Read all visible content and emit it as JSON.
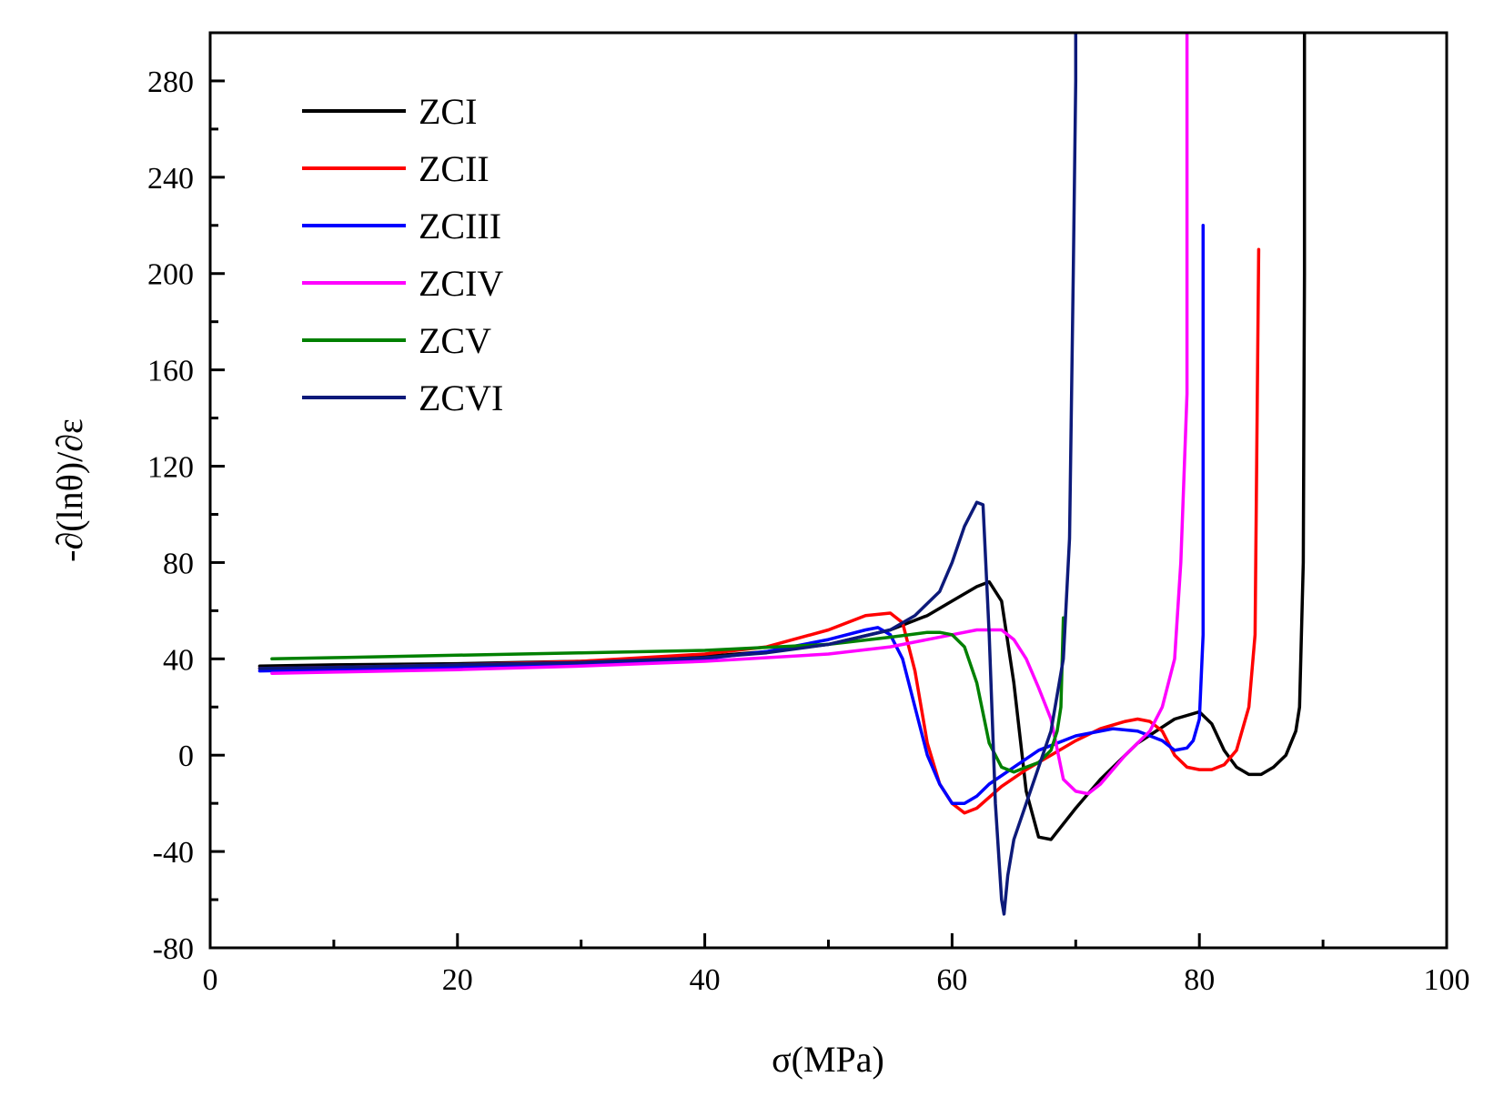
{
  "chart_data": {
    "type": "line",
    "title": "",
    "xlabel": "σ(MPa)",
    "ylabel": "-∂(lnθ)/∂ε",
    "xlim": [
      0,
      100
    ],
    "ylim": [
      -80,
      300
    ],
    "xticks": [
      0,
      20,
      40,
      60,
      80,
      100
    ],
    "xtick_labels": [
      "0",
      "20",
      "40",
      "60",
      "80",
      "100"
    ],
    "yticks": [
      -80,
      -40,
      0,
      40,
      80,
      120,
      160,
      200,
      240,
      280
    ],
    "ytick_labels": [
      "-80",
      "-40",
      "0",
      "40",
      "80",
      "120",
      "160",
      "200",
      "240",
      "280"
    ],
    "grid": false,
    "legend_position": "top-left",
    "series": [
      {
        "name": "ZCI",
        "color": "#000000",
        "x": [
          4,
          10,
          20,
          30,
          40,
          45,
          50,
          55,
          58,
          60,
          62,
          63,
          64,
          65,
          66,
          67,
          68,
          70,
          72,
          75,
          78,
          80,
          81,
          82,
          83,
          84,
          85,
          86,
          87,
          87.8,
          88.1,
          88.4,
          88.5,
          88.5
        ],
        "y": [
          37,
          37.5,
          38,
          39,
          41,
          43,
          46,
          52,
          58,
          64,
          70,
          72,
          64,
          30,
          -15,
          -34,
          -35,
          -22,
          -10,
          5,
          15,
          18,
          13,
          2,
          -5,
          -8,
          -8,
          -5,
          0,
          10,
          20,
          80,
          200,
          300
        ]
      },
      {
        "name": "ZCII",
        "color": "#ff0000",
        "x": [
          4,
          10,
          20,
          30,
          40,
          45,
          50,
          53,
          55,
          56,
          57,
          58,
          59,
          60,
          61,
          62,
          64,
          66,
          68,
          70,
          72,
          74,
          75,
          76,
          77,
          78,
          79,
          80,
          81,
          82,
          83,
          84,
          84.5,
          84.8
        ],
        "y": [
          36,
          36.5,
          37.5,
          39,
          42,
          45,
          52,
          58,
          59,
          55,
          35,
          5,
          -12,
          -20,
          -24,
          -22,
          -13,
          -6,
          0,
          6,
          11,
          14,
          15,
          14,
          10,
          0,
          -5,
          -6,
          -6,
          -4,
          2,
          20,
          50,
          210
        ]
      },
      {
        "name": "ZCIII",
        "color": "#0000ff",
        "x": [
          4,
          10,
          20,
          30,
          40,
          45,
          50,
          53,
          54,
          55,
          56,
          57,
          58,
          59,
          60,
          61,
          62,
          63,
          65,
          67,
          70,
          73,
          75,
          77,
          78,
          79,
          79.5,
          80,
          80.3,
          80.3
        ],
        "y": [
          35,
          35.5,
          36.5,
          38,
          40,
          43,
          48,
          52,
          53,
          50,
          40,
          20,
          0,
          -12,
          -20,
          -20,
          -17,
          -12,
          -5,
          2,
          8,
          11,
          10,
          6,
          2,
          3,
          6,
          15,
          50,
          220
        ]
      },
      {
        "name": "ZCIV",
        "color": "#ff00ff",
        "x": [
          5,
          10,
          20,
          30,
          40,
          50,
          55,
          60,
          62,
          63,
          64,
          65,
          66,
          67,
          68,
          69,
          70,
          71,
          72,
          74,
          76,
          77,
          78,
          78.5,
          79,
          79,
          79
        ],
        "y": [
          34,
          34.5,
          35.5,
          37,
          39,
          42,
          45,
          50,
          52,
          52,
          52,
          48,
          40,
          28,
          15,
          -10,
          -15,
          -16,
          -12,
          0,
          10,
          20,
          40,
          80,
          150,
          250,
          300
        ]
      },
      {
        "name": "ZCV",
        "color": "#008000",
        "x": [
          5,
          10,
          20,
          30,
          40,
          50,
          55,
          58,
          59,
          60,
          61,
          62,
          63,
          64,
          65,
          66,
          67,
          68,
          68.5,
          68.8,
          69
        ],
        "y": [
          40,
          40.5,
          41.5,
          42.5,
          43.5,
          46,
          49,
          51,
          51,
          50,
          45,
          30,
          5,
          -5,
          -7,
          -5,
          -3,
          2,
          10,
          20,
          57
        ]
      },
      {
        "name": "ZCVI",
        "color": "#0d1a7a",
        "x": [
          4,
          10,
          20,
          30,
          40,
          45,
          50,
          55,
          57,
          59,
          60,
          61,
          62,
          62.5,
          63,
          63.5,
          64,
          64.2,
          64.5,
          65,
          66,
          67,
          68,
          69,
          69.5,
          69.8,
          70,
          70
        ],
        "y": [
          36,
          36.5,
          37.5,
          38.5,
          40.5,
          42.5,
          46,
          52,
          58,
          68,
          80,
          95,
          105,
          104,
          50,
          -20,
          -60,
          -66,
          -50,
          -35,
          -20,
          -5,
          10,
          40,
          90,
          200,
          280,
          300
        ]
      }
    ]
  }
}
